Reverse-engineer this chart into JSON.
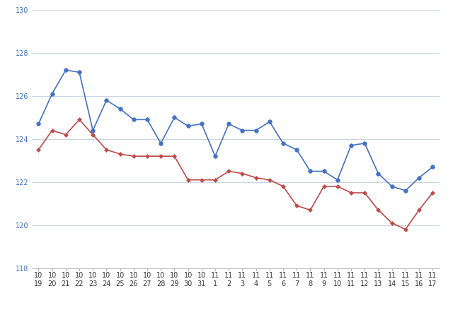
{
  "x_labels_top": [
    "10",
    "10",
    "10",
    "10",
    "10",
    "10",
    "10",
    "10",
    "10",
    "10",
    "10",
    "10",
    "10",
    "11",
    "11",
    "11",
    "11",
    "11",
    "11",
    "11",
    "11",
    "11",
    "11",
    "11",
    "11",
    "11",
    "11",
    "11",
    "11",
    "11"
  ],
  "x_labels_bottom": [
    "19",
    "20",
    "21",
    "22",
    "23",
    "24",
    "25",
    "26",
    "27",
    "28",
    "29",
    "30",
    "31",
    "1",
    "2",
    "3",
    "4",
    "5",
    "6",
    "7",
    "8",
    "9",
    "10",
    "11",
    "12",
    "13",
    "14",
    "15",
    "16",
    "17"
  ],
  "blue_values": [
    124.7,
    126.1,
    127.2,
    127.1,
    124.4,
    125.8,
    125.4,
    124.9,
    124.9,
    123.8,
    125.0,
    124.6,
    124.7,
    123.2,
    124.7,
    124.4,
    124.4,
    124.8,
    123.8,
    123.5,
    122.5,
    122.5,
    122.1,
    123.7,
    123.8,
    122.4,
    121.8,
    121.6,
    122.2,
    122.7
  ],
  "red_values": [
    123.5,
    124.4,
    124.2,
    124.9,
    124.2,
    123.5,
    123.3,
    123.2,
    123.2,
    123.2,
    123.2,
    122.1,
    122.1,
    122.1,
    122.5,
    122.4,
    122.2,
    122.1,
    121.8,
    120.9,
    120.7,
    121.8,
    121.8,
    121.5,
    121.5,
    120.7,
    120.1,
    119.8,
    120.7,
    121.5
  ],
  "ylim_min": 118,
  "ylim_max": 130,
  "yticks": [
    118,
    120,
    122,
    124,
    126,
    128,
    130
  ],
  "blue_color": "#4472C4",
  "red_color": "#BE4B48",
  "background_color": "#FFFFFF",
  "grid_color": "#C8D4E3",
  "marker_size": 4,
  "linewidth": 1.2,
  "tick_fontsize": 7,
  "legend_fontsize": 8.5
}
